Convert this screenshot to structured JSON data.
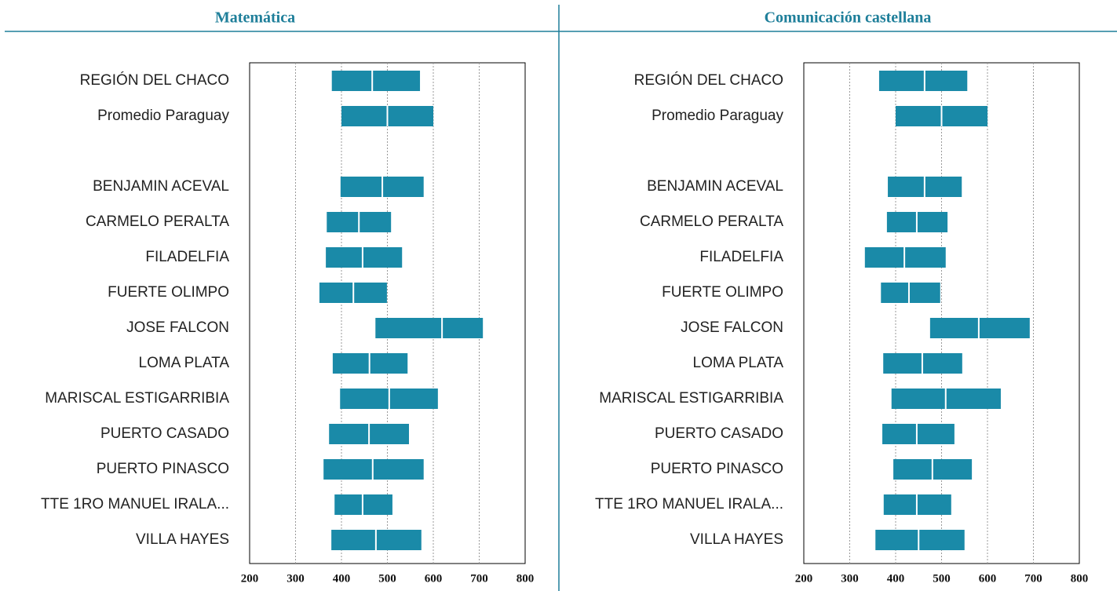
{
  "chart_data": [
    {
      "type": "floating_bar",
      "title": "Matemática",
      "color": "#1a8aa8",
      "categories": [
        "REGIÓN DEL CHACO",
        "Promedio Paraguay",
        null,
        "BENJAMIN ACEVAL",
        "CARMELO PERALTA",
        "FILADELFIA",
        "FUERTE OLIMPO",
        "JOSE FALCON",
        "LOMA PLATA",
        "MARISCAL ESTIGARRIBIA",
        "PUERTO CASADO",
        "PUERTO PINASCO",
        "TTE 1RO MANUEL IRALA...",
        "VILLA HAYES"
      ],
      "values": [
        [
          379,
          467,
          571
        ],
        [
          400,
          500,
          600
        ],
        null,
        [
          398,
          489,
          579
        ],
        [
          368,
          438,
          508
        ],
        [
          366,
          446,
          532
        ],
        [
          352,
          426,
          499
        ],
        [
          474,
          619,
          708
        ],
        [
          381,
          461,
          544
        ],
        [
          397,
          504,
          610
        ],
        [
          373,
          460,
          547
        ],
        [
          361,
          468,
          579
        ],
        [
          385,
          446,
          511
        ],
        [
          378,
          475,
          574
        ]
      ],
      "xlim": [
        200,
        800
      ],
      "xticks": [
        200,
        300,
        400,
        500,
        600,
        700,
        800
      ],
      "grid": true
    },
    {
      "type": "floating_bar",
      "title": "Comunicación castellana",
      "color": "#1a8aa8",
      "categories": [
        "REGIÓN DEL CHACO",
        "Promedio Paraguay",
        null,
        "BENJAMIN ACEVAL",
        "CARMELO PERALTA",
        "FILADELFIA",
        "FUERTE OLIMPO",
        "JOSE FALCON",
        "LOMA PLATA",
        "MARISCAL ESTIGARRIBIA",
        "PUERTO CASADO",
        "PUERTO PINASCO",
        "TTE 1RO MANUEL IRALA...",
        "VILLA HAYES"
      ],
      "values": [
        [
          364,
          463,
          556
        ],
        [
          400,
          500,
          600
        ],
        null,
        [
          383,
          463,
          544
        ],
        [
          381,
          446,
          513
        ],
        [
          333,
          419,
          509
        ],
        [
          368,
          429,
          497
        ],
        [
          475,
          581,
          692
        ],
        [
          373,
          458,
          545
        ],
        [
          391,
          509,
          629
        ],
        [
          371,
          446,
          528
        ],
        [
          395,
          480,
          566
        ],
        [
          374,
          446,
          521
        ],
        [
          356,
          450,
          550
        ]
      ],
      "xlim": [
        200,
        800
      ],
      "xticks": [
        200,
        300,
        400,
        500,
        600,
        700,
        800
      ],
      "grid": true
    }
  ]
}
